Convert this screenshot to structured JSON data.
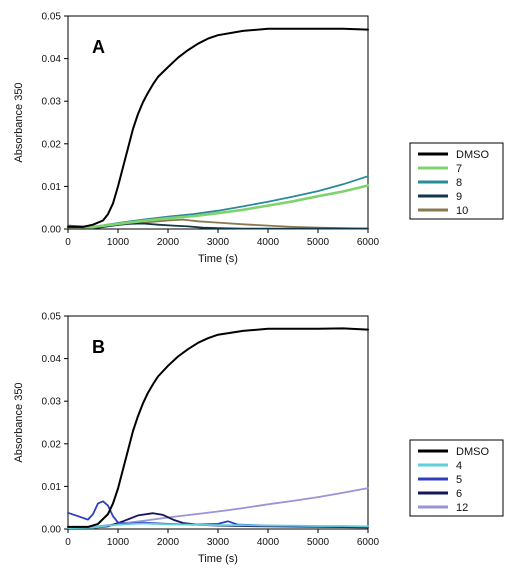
{
  "figure": {
    "charts": [
      {
        "panel_label": "A",
        "type": "line",
        "xlabel": "Time (s)",
        "ylabel": "Absorbance 350",
        "xlim": [
          0,
          6000
        ],
        "ylim": [
          0,
          0.05
        ],
        "xticks": [
          "0",
          "1000",
          "2000",
          "3000",
          "4000",
          "5000",
          "6000"
        ],
        "yticks": [
          "0.00",
          "0.01",
          "0.02",
          "0.03",
          "0.04",
          "0.05"
        ],
        "grid": false,
        "legend_position": "right",
        "series": [
          {
            "name": "DMSO",
            "color": "#000000",
            "x": [
              0,
              300,
              500,
              700,
              800,
              900,
              1000,
              1100,
              1200,
              1300,
              1400,
              1500,
              1600,
              1700,
              1800,
              2000,
              2200,
              2400,
              2600,
              2800,
              3000,
              3500,
              4000,
              4500,
              5000,
              5500,
              6000
            ],
            "y": [
              0.0005,
              0.0005,
              0.001,
              0.002,
              0.0035,
              0.006,
              0.01,
              0.0145,
              0.019,
              0.0235,
              0.027,
              0.0298,
              0.032,
              0.034,
              0.0357,
              0.038,
              0.0402,
              0.042,
              0.0435,
              0.0447,
              0.0455,
              0.0465,
              0.047,
              0.047,
              0.047,
              0.047,
              0.0468
            ]
          },
          {
            "name": "7",
            "color": "#7fd36f",
            "x": [
              0,
              500,
              1000,
              1500,
              2000,
              2500,
              3000,
              3500,
              4000,
              4500,
              5000,
              5500,
              6000
            ],
            "y": [
              0.0005,
              0.0005,
              0.0012,
              0.0019,
              0.0025,
              0.003,
              0.0037,
              0.0045,
              0.0055,
              0.0065,
              0.0077,
              0.0088,
              0.0102
            ]
          },
          {
            "name": "8",
            "color": "#2a8a96",
            "x": [
              0,
              500,
              1000,
              1500,
              2000,
              2500,
              3000,
              3500,
              4000,
              4500,
              5000,
              5500,
              6000
            ],
            "y": [
              0.0005,
              0.0005,
              0.0014,
              0.0022,
              0.0029,
              0.0035,
              0.0043,
              0.0053,
              0.0064,
              0.0076,
              0.0089,
              0.0105,
              0.0124
            ]
          },
          {
            "name": "9",
            "color": "#12364a",
            "x": [
              0,
              300,
              600,
              900,
              1200,
              1500,
              1800,
              2100,
              2400,
              2700,
              3000,
              3500,
              4000,
              4500,
              5000,
              5500,
              6000
            ],
            "y": [
              0.0008,
              0.0006,
              0.0003,
              0.0008,
              0.0012,
              0.0013,
              0.001,
              0.0008,
              0.0006,
              0.0003,
              0.0002,
              0.0001,
              0.0001,
              0.0001,
              0.0001,
              0.0001,
              0.0001
            ]
          },
          {
            "name": "10",
            "color": "#8a7a52",
            "x": [
              0,
              300,
              600,
              1000,
              1500,
              2000,
              2300,
              2600,
              3000,
              3500,
              4000,
              4500,
              5000,
              5500,
              6000
            ],
            "y": [
              0.0006,
              0.0004,
              0.0005,
              0.001,
              0.0015,
              0.002,
              0.0022,
              0.0018,
              0.0015,
              0.0011,
              0.0008,
              0.0005,
              0.0003,
              0.0002,
              0.0001
            ]
          }
        ]
      },
      {
        "panel_label": "B",
        "type": "line",
        "xlabel": "Time (s)",
        "ylabel": "Absorbance 350",
        "xlim": [
          0,
          6000
        ],
        "ylim": [
          0,
          0.05
        ],
        "xticks": [
          "0",
          "1000",
          "2000",
          "3000",
          "4000",
          "5000",
          "6000"
        ],
        "yticks": [
          "0.00",
          "0.01",
          "0.02",
          "0.03",
          "0.04",
          "0.05"
        ],
        "grid": false,
        "legend_position": "right",
        "series": [
          {
            "name": "DMSO",
            "color": "#000000",
            "x": [
              0,
              400,
              600,
              800,
              900,
              1000,
              1100,
              1200,
              1300,
              1400,
              1500,
              1600,
              1700,
              1800,
              2000,
              2200,
              2400,
              2600,
              2800,
              3000,
              3500,
              4000,
              4500,
              5000,
              5500,
              6000
            ],
            "y": [
              0.0005,
              0.0005,
              0.0012,
              0.0035,
              0.006,
              0.0095,
              0.014,
              0.0185,
              0.023,
              0.0265,
              0.0295,
              0.032,
              0.034,
              0.0358,
              0.0383,
              0.0405,
              0.0422,
              0.0437,
              0.0448,
              0.0456,
              0.0465,
              0.047,
              0.047,
              0.047,
              0.0471,
              0.0468
            ]
          },
          {
            "name": "4",
            "color": "#5fd0d8",
            "x": [
              0,
              500,
              800,
              1000,
              1500,
              2000,
              2500,
              3000,
              3500,
              4000,
              4500,
              5000,
              5500,
              6000
            ],
            "y": [
              0.0002,
              0.0003,
              0.0008,
              0.001,
              0.0013,
              0.0011,
              0.001,
              0.0009,
              0.0009,
              0.0008,
              0.0008,
              0.0007,
              0.0007,
              0.0006
            ]
          },
          {
            "name": "5",
            "color": "#2f3fbf",
            "x": [
              0,
              200,
              400,
              500,
              600,
              700,
              800,
              900,
              1000,
              1200,
              1500,
              2000,
              2500,
              3000,
              3200,
              3400,
              4000,
              5000,
              6000
            ],
            "y": [
              0.0038,
              0.003,
              0.0022,
              0.0035,
              0.006,
              0.0065,
              0.0055,
              0.003,
              0.0015,
              0.0012,
              0.0015,
              0.0012,
              0.001,
              0.0012,
              0.0018,
              0.001,
              0.0008,
              0.0006,
              0.0005
            ]
          },
          {
            "name": "6",
            "color": "#15155e",
            "x": [
              0,
              500,
              800,
              1100,
              1400,
              1700,
              1900,
              2100,
              2300,
              2600,
              3000,
              4000,
              5000,
              6000
            ],
            "y": [
              0.0002,
              0.0003,
              0.0006,
              0.0018,
              0.0032,
              0.0037,
              0.0033,
              0.0022,
              0.0014,
              0.001,
              0.0008,
              0.0006,
              0.0005,
              0.0004
            ]
          },
          {
            "name": "12",
            "color": "#9a94d6",
            "x": [
              0,
              500,
              1000,
              1500,
              2000,
              2500,
              3000,
              3500,
              4000,
              4500,
              5000,
              5500,
              6000
            ],
            "y": [
              0.0003,
              0.0005,
              0.0012,
              0.0019,
              0.0027,
              0.0034,
              0.0041,
              0.0049,
              0.0058,
              0.0066,
              0.0075,
              0.0085,
              0.0096
            ]
          }
        ]
      }
    ]
  }
}
